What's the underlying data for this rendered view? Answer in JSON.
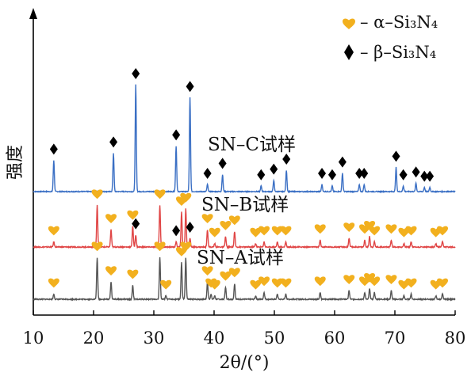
{
  "chart_data": {
    "type": "line",
    "title": "",
    "xlabel": "2θ/(°)",
    "ylabel": "强度",
    "xlim": [
      10,
      80
    ],
    "xticks": [
      10,
      20,
      30,
      40,
      50,
      60,
      70,
      80
    ],
    "yticks_shown": false,
    "grid": false,
    "legend_position": "top-right",
    "legend": [
      {
        "symbol": "heart",
        "color": "#f2b01e",
        "label": "– α–Si₃N₄"
      },
      {
        "symbol": "diamond",
        "color": "#000000",
        "label": "– β–Si₃N₄"
      }
    ],
    "series": [
      {
        "name": "SN–C试样",
        "color": "#3a6fc4",
        "peaks": [
          {
            "x": 13.4,
            "intensity": 0.22,
            "phase": "beta"
          },
          {
            "x": 23.3,
            "intensity": 0.27,
            "phase": "beta"
          },
          {
            "x": 27.0,
            "intensity": 0.75,
            "phase": "beta"
          },
          {
            "x": 33.7,
            "intensity": 0.32,
            "phase": "beta"
          },
          {
            "x": 36.0,
            "intensity": 0.66,
            "phase": "beta"
          },
          {
            "x": 38.9,
            "intensity": 0.05,
            "phase": "beta"
          },
          {
            "x": 41.4,
            "intensity": 0.12,
            "phase": "beta"
          },
          {
            "x": 47.8,
            "intensity": 0.04,
            "phase": "beta"
          },
          {
            "x": 49.9,
            "intensity": 0.08,
            "phase": "beta"
          },
          {
            "x": 52.0,
            "intensity": 0.15,
            "phase": "beta"
          },
          {
            "x": 57.9,
            "intensity": 0.05,
            "phase": "beta"
          },
          {
            "x": 59.6,
            "intensity": 0.04,
            "phase": "beta"
          },
          {
            "x": 61.3,
            "intensity": 0.13,
            "phase": "beta"
          },
          {
            "x": 64.1,
            "intensity": 0.05,
            "phase": "beta"
          },
          {
            "x": 64.9,
            "intensity": 0.05,
            "phase": "beta"
          },
          {
            "x": 70.2,
            "intensity": 0.17,
            "phase": "beta"
          },
          {
            "x": 71.4,
            "intensity": 0.04,
            "phase": "beta"
          },
          {
            "x": 73.5,
            "intensity": 0.06,
            "phase": "beta"
          },
          {
            "x": 74.9,
            "intensity": 0.03,
            "phase": "beta"
          },
          {
            "x": 75.8,
            "intensity": 0.03,
            "phase": "beta"
          }
        ]
      },
      {
        "name": "SN–B试样",
        "color": "#e04545",
        "peaks": [
          {
            "x": 13.4,
            "intensity": 0.03,
            "phase": "alpha"
          },
          {
            "x": 20.6,
            "intensity": 0.24,
            "phase": "alpha"
          },
          {
            "x": 22.9,
            "intensity": 0.1,
            "phase": "alpha"
          },
          {
            "x": 26.5,
            "intensity": 0.12,
            "phase": "alpha"
          },
          {
            "x": 27.0,
            "intensity": 0.07,
            "phase": "beta"
          },
          {
            "x": 31.0,
            "intensity": 0.24,
            "phase": "alpha"
          },
          {
            "x": 33.7,
            "intensity": 0.03,
            "phase": "beta"
          },
          {
            "x": 34.6,
            "intensity": 0.2,
            "phase": "alpha"
          },
          {
            "x": 35.3,
            "intensity": 0.22,
            "phase": "alpha"
          },
          {
            "x": 36.0,
            "intensity": 0.05,
            "phase": "beta"
          },
          {
            "x": 38.9,
            "intensity": 0.1,
            "phase": "alpha"
          },
          {
            "x": 40.1,
            "intensity": 0.02,
            "phase": "alpha"
          },
          {
            "x": 41.9,
            "intensity": 0.06,
            "phase": "alpha"
          },
          {
            "x": 43.4,
            "intensity": 0.09,
            "phase": "alpha"
          },
          {
            "x": 46.9,
            "intensity": 0.02,
            "phase": "alpha"
          },
          {
            "x": 48.3,
            "intensity": 0.03,
            "phase": "alpha"
          },
          {
            "x": 50.5,
            "intensity": 0.03,
            "phase": "alpha"
          },
          {
            "x": 51.9,
            "intensity": 0.03,
            "phase": "alpha"
          },
          {
            "x": 57.6,
            "intensity": 0.04,
            "phase": "alpha"
          },
          {
            "x": 62.4,
            "intensity": 0.05,
            "phase": "alpha"
          },
          {
            "x": 65.0,
            "intensity": 0.04,
            "phase": "alpha"
          },
          {
            "x": 65.8,
            "intensity": 0.06,
            "phase": "alpha"
          },
          {
            "x": 66.6,
            "intensity": 0.03,
            "phase": "alpha"
          },
          {
            "x": 69.4,
            "intensity": 0.04,
            "phase": "alpha"
          },
          {
            "x": 71.5,
            "intensity": 0.02,
            "phase": "alpha"
          },
          {
            "x": 72.7,
            "intensity": 0.03,
            "phase": "alpha"
          },
          {
            "x": 76.8,
            "intensity": 0.02,
            "phase": "alpha"
          },
          {
            "x": 77.9,
            "intensity": 0.03,
            "phase": "alpha"
          }
        ]
      },
      {
        "name": "SN–A试样",
        "color": "#555555",
        "peaks": [
          {
            "x": 13.4,
            "intensity": 0.03,
            "phase": "alpha"
          },
          {
            "x": 20.6,
            "intensity": 0.24,
            "phase": "alpha"
          },
          {
            "x": 22.9,
            "intensity": 0.1,
            "phase": "alpha"
          },
          {
            "x": 26.5,
            "intensity": 0.08,
            "phase": "alpha"
          },
          {
            "x": 31.0,
            "intensity": 0.24,
            "phase": "alpha"
          },
          {
            "x": 32.0,
            "intensity": 0.02,
            "phase": "alpha"
          },
          {
            "x": 34.6,
            "intensity": 0.21,
            "phase": "alpha"
          },
          {
            "x": 35.3,
            "intensity": 0.24,
            "phase": "alpha"
          },
          {
            "x": 38.9,
            "intensity": 0.1,
            "phase": "alpha"
          },
          {
            "x": 39.5,
            "intensity": 0.03,
            "phase": "alpha"
          },
          {
            "x": 40.1,
            "intensity": 0.02,
            "phase": "alpha"
          },
          {
            "x": 41.9,
            "intensity": 0.07,
            "phase": "alpha"
          },
          {
            "x": 43.4,
            "intensity": 0.09,
            "phase": "alpha"
          },
          {
            "x": 46.9,
            "intensity": 0.02,
            "phase": "alpha"
          },
          {
            "x": 48.3,
            "intensity": 0.04,
            "phase": "alpha"
          },
          {
            "x": 50.5,
            "intensity": 0.03,
            "phase": "alpha"
          },
          {
            "x": 51.9,
            "intensity": 0.03,
            "phase": "alpha"
          },
          {
            "x": 57.6,
            "intensity": 0.04,
            "phase": "alpha"
          },
          {
            "x": 62.4,
            "intensity": 0.05,
            "phase": "alpha"
          },
          {
            "x": 65.0,
            "intensity": 0.04,
            "phase": "alpha"
          },
          {
            "x": 65.8,
            "intensity": 0.06,
            "phase": "alpha"
          },
          {
            "x": 66.6,
            "intensity": 0.04,
            "phase": "alpha"
          },
          {
            "x": 69.4,
            "intensity": 0.05,
            "phase": "alpha"
          },
          {
            "x": 71.5,
            "intensity": 0.02,
            "phase": "alpha"
          },
          {
            "x": 72.7,
            "intensity": 0.03,
            "phase": "alpha"
          },
          {
            "x": 76.8,
            "intensity": 0.02,
            "phase": "alpha"
          },
          {
            "x": 77.9,
            "intensity": 0.03,
            "phase": "alpha"
          }
        ]
      }
    ]
  }
}
